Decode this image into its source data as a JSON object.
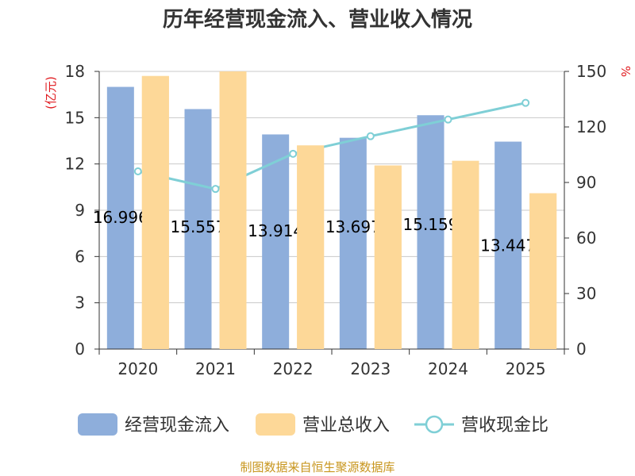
{
  "chart_data": {
    "type": "bar",
    "title": "历年经营现金流入、营业收入情况",
    "categories": [
      "2020",
      "2021",
      "2022",
      "2023",
      "2024",
      "2025"
    ],
    "series": [
      {
        "name": "经营现金流入",
        "type": "bar",
        "axis": "left",
        "color": "#8eaedb",
        "values": [
          16.996,
          15.557,
          13.914,
          13.697,
          15.159,
          13.447
        ],
        "labels": [
          "16.996",
          "15.557",
          "13.914",
          "13.697",
          "15.159",
          "13.447"
        ]
      },
      {
        "name": "营业总收入",
        "type": "bar",
        "axis": "left",
        "color": "#fdd898",
        "values": [
          17.7,
          18.0,
          13.2,
          11.9,
          12.2,
          10.1
        ]
      },
      {
        "name": "营收现金比",
        "type": "line",
        "axis": "right",
        "color": "#7fcfd6",
        "values": [
          96.0,
          86.5,
          105.5,
          115.0,
          124.0,
          133.0
        ]
      }
    ],
    "y_left": {
      "label": "(亿元)",
      "min": 0,
      "max": 18,
      "ticks": [
        0,
        3,
        6,
        9,
        12,
        15,
        18
      ]
    },
    "y_right": {
      "label": "%",
      "min": 0,
      "max": 150,
      "ticks": [
        0,
        30,
        60,
        90,
        120,
        150
      ]
    },
    "legend": [
      "经营现金流入",
      "营业总收入",
      "营收现金比"
    ],
    "legend_position": "bottom"
  },
  "source": "制图数据来自恒生聚源数据库"
}
